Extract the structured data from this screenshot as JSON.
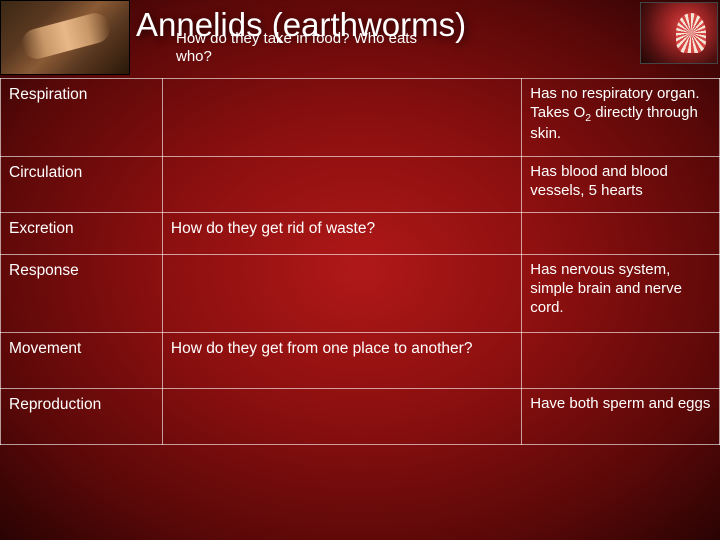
{
  "title": "Annelids (earthworms)",
  "subtitle": "How do they take in food? Who eats who?",
  "rows": [
    {
      "label": "Respiration",
      "question": "",
      "answer_html": "Has no respiratory organ.  Takes O<sub>2</sub> directly through skin.",
      "row_class": "row-resp"
    },
    {
      "label": "Circulation",
      "question": "",
      "answer": "Has blood and blood vessels, 5 hearts",
      "row_class": "row-circ"
    },
    {
      "label": "Excretion",
      "question": "How do they get rid of waste?",
      "answer": "",
      "row_class": "row-excr"
    },
    {
      "label": "Response",
      "question": "",
      "answer": "Has nervous system, simple brain and nerve cord.",
      "row_class": "row-response"
    },
    {
      "label": "Movement",
      "question": "How do they get from one place to another?",
      "answer": "",
      "row_class": "row-move"
    },
    {
      "label": "Reproduction",
      "question": "",
      "answer": "Have both sperm and eggs",
      "row_class": "row-repro"
    }
  ],
  "colors": {
    "bg_center": "#b01818",
    "bg_edge": "#2a0303",
    "border": "rgba(255,255,255,0.6)",
    "text": "#ffffff"
  }
}
